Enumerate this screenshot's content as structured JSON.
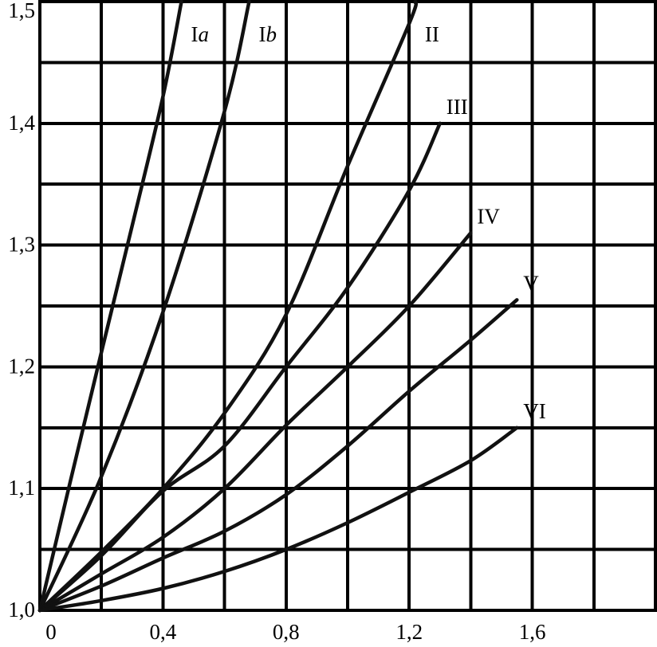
{
  "chart_data": {
    "type": "line",
    "title": "",
    "xlabel": "",
    "ylabel": "",
    "xlim": [
      0,
      2.0
    ],
    "ylim": [
      1.0,
      1.5
    ],
    "grid": true,
    "x_ticks": [
      {
        "value": 0,
        "label": "0"
      },
      {
        "value": 0.4,
        "label": "0,4"
      },
      {
        "value": 0.8,
        "label": "0,8"
      },
      {
        "value": 1.2,
        "label": "1,2"
      },
      {
        "value": 1.6,
        "label": "1,6"
      }
    ],
    "y_ticks": [
      {
        "value": 1.0,
        "label": "1,0"
      },
      {
        "value": 1.1,
        "label": "1,1"
      },
      {
        "value": 1.2,
        "label": "1,2"
      },
      {
        "value": 1.3,
        "label": "1,3"
      },
      {
        "value": 1.4,
        "label": "1,4"
      },
      {
        "value": 1.5,
        "label": "1,5"
      }
    ],
    "series": [
      {
        "name": "Ia",
        "label_main": "I",
        "label_sub": "a",
        "label_italic": true,
        "x": [
          0,
          0.1,
          0.2,
          0.3,
          0.4,
          0.46
        ],
        "y": [
          1.0,
          1.107,
          1.212,
          1.316,
          1.422,
          1.5
        ]
      },
      {
        "name": "Ib",
        "label_main": "I",
        "label_sub": "b",
        "label_italic": true,
        "x": [
          0,
          0.2,
          0.4,
          0.6,
          0.68
        ],
        "y": [
          1.0,
          1.11,
          1.245,
          1.41,
          1.5
        ]
      },
      {
        "name": "II",
        "label_main": "II",
        "label_sub": "",
        "label_italic": false,
        "x": [
          0,
          0.2,
          0.4,
          0.6,
          0.8,
          1.0,
          1.2,
          1.22
        ],
        "y": [
          1.0,
          1.048,
          1.1,
          1.162,
          1.243,
          1.365,
          1.482,
          1.5
        ]
      },
      {
        "name": "III",
        "label_main": "III",
        "label_sub": "",
        "label_italic": false,
        "x": [
          0,
          0.2,
          0.4,
          0.6,
          0.8,
          1.0,
          1.2,
          1.3
        ],
        "y": [
          1.0,
          1.045,
          1.098,
          1.135,
          1.2,
          1.265,
          1.345,
          1.4
        ]
      },
      {
        "name": "IV",
        "label_main": "IV",
        "label_sub": "",
        "label_italic": false,
        "x": [
          0,
          0.2,
          0.4,
          0.6,
          0.8,
          1.0,
          1.2,
          1.4
        ],
        "y": [
          1.0,
          1.03,
          1.06,
          1.1,
          1.152,
          1.2,
          1.25,
          1.31
        ]
      },
      {
        "name": "V",
        "label_main": "V",
        "label_sub": "",
        "label_italic": false,
        "x": [
          0,
          0.2,
          0.4,
          0.6,
          0.8,
          1.0,
          1.2,
          1.4,
          1.55
        ],
        "y": [
          1.0,
          1.02,
          1.043,
          1.065,
          1.095,
          1.135,
          1.18,
          1.222,
          1.255
        ]
      },
      {
        "name": "VI",
        "label_main": "VI",
        "label_sub": "",
        "label_italic": false,
        "x": [
          0,
          0.2,
          0.4,
          0.6,
          0.8,
          1.0,
          1.2,
          1.4,
          1.55
        ],
        "y": [
          1.0,
          1.008,
          1.018,
          1.032,
          1.05,
          1.072,
          1.097,
          1.123,
          1.15
        ]
      }
    ]
  }
}
